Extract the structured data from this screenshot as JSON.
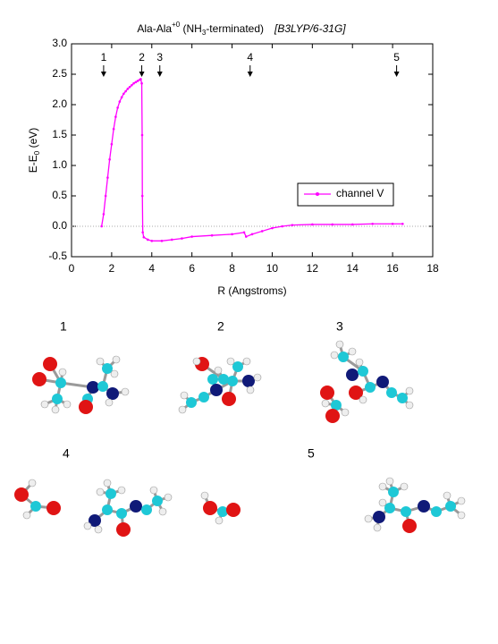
{
  "chart_data": {
    "type": "line",
    "title": [
      "Ala-Ala",
      "+0",
      " (NH",
      "3",
      "-terminated)",
      "[B3LYP/6-31G]"
    ],
    "x_label": "R (Angstroms)",
    "y_label": [
      "E-E",
      "0",
      " (eV)"
    ],
    "x": [
      1.5,
      1.6,
      1.7,
      1.8,
      1.9,
      2.0,
      2.1,
      2.2,
      2.3,
      2.4,
      2.5,
      2.6,
      2.7,
      2.8,
      2.9,
      3.0,
      3.1,
      3.2,
      3.3,
      3.4,
      3.45,
      3.5,
      3.52,
      3.53,
      3.55,
      3.6,
      3.8,
      4.0,
      4.5,
      5.0,
      5.5,
      6.0,
      7.0,
      8.0,
      8.6,
      8.7,
      9.0,
      9.5,
      10.0,
      10.5,
      11.0,
      12.0,
      13.0,
      14.0,
      15.0,
      16.0,
      16.5
    ],
    "series": [
      {
        "name": "channel V",
        "color": "#ff00ff",
        "values": [
          0.0,
          0.2,
          0.5,
          0.8,
          1.1,
          1.35,
          1.6,
          1.8,
          1.95,
          2.05,
          2.12,
          2.18,
          2.22,
          2.26,
          2.29,
          2.32,
          2.35,
          2.37,
          2.39,
          2.41,
          2.42,
          2.35,
          1.5,
          0.5,
          -0.1,
          -0.18,
          -0.22,
          -0.24,
          -0.24,
          -0.22,
          -0.2,
          -0.17,
          -0.15,
          -0.13,
          -0.1,
          -0.17,
          -0.13,
          -0.08,
          -0.03,
          0.0,
          0.02,
          0.03,
          0.03,
          0.03,
          0.04,
          0.04,
          0.04
        ]
      }
    ],
    "xlim": [
      0,
      18
    ],
    "xticks": [
      0,
      2,
      4,
      6,
      8,
      10,
      12,
      14,
      16,
      18
    ],
    "ylim": [
      -0.5,
      3.0
    ],
    "yticks": [
      -0.5,
      {
        "value": 0,
        "label": "0.0"
      },
      0.5,
      {
        "value": 1,
        "label": "1.0"
      },
      1.5,
      {
        "value": 2,
        "label": "2.0"
      },
      2.5,
      {
        "value": 3,
        "label": "3.0"
      }
    ],
    "zero_line": 0,
    "legend": "right",
    "annotations": [
      {
        "label": "1",
        "x": 1.6
      },
      {
        "label": "2",
        "x": 3.5
      },
      {
        "label": "3",
        "x": 4.4
      },
      {
        "label": "4",
        "x": 8.9
      },
      {
        "label": "5",
        "x": 16.2
      }
    ]
  },
  "structures": {
    "labels": [
      "1",
      "2",
      "3",
      "4",
      "5"
    ]
  }
}
